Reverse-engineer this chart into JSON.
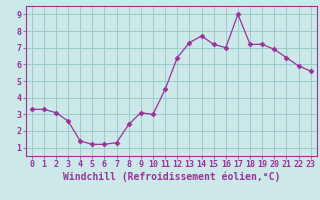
{
  "x": [
    0,
    1,
    2,
    3,
    4,
    5,
    6,
    7,
    8,
    9,
    10,
    11,
    12,
    13,
    14,
    15,
    16,
    17,
    18,
    19,
    20,
    21,
    22,
    23
  ],
  "y": [
    3.3,
    3.3,
    3.1,
    2.6,
    1.4,
    1.2,
    1.2,
    1.3,
    2.4,
    3.1,
    3.0,
    4.5,
    6.4,
    7.3,
    7.7,
    7.2,
    7.0,
    9.0,
    7.2,
    7.2,
    6.9,
    6.4,
    5.9,
    5.6
  ],
  "line_color": "#993399",
  "marker": "D",
  "marker_size": 2.5,
  "bg_color": "#cce8e8",
  "grid_color": "#99cccc",
  "xlabel": "Windchill (Refroidissement éolien,°C)",
  "xlabel_color": "#993399",
  "tick_color": "#993399",
  "xlim": [
    -0.5,
    23.5
  ],
  "ylim": [
    0.5,
    9.5
  ],
  "yticks": [
    1,
    2,
    3,
    4,
    5,
    6,
    7,
    8,
    9
  ],
  "xticks": [
    0,
    1,
    2,
    3,
    4,
    5,
    6,
    7,
    8,
    9,
    10,
    11,
    12,
    13,
    14,
    15,
    16,
    17,
    18,
    19,
    20,
    21,
    22,
    23
  ],
  "spine_color": "#993399",
  "font_size_label": 6.5,
  "font_size_tick": 6.0,
  "font_size_xlabel": 7.0
}
